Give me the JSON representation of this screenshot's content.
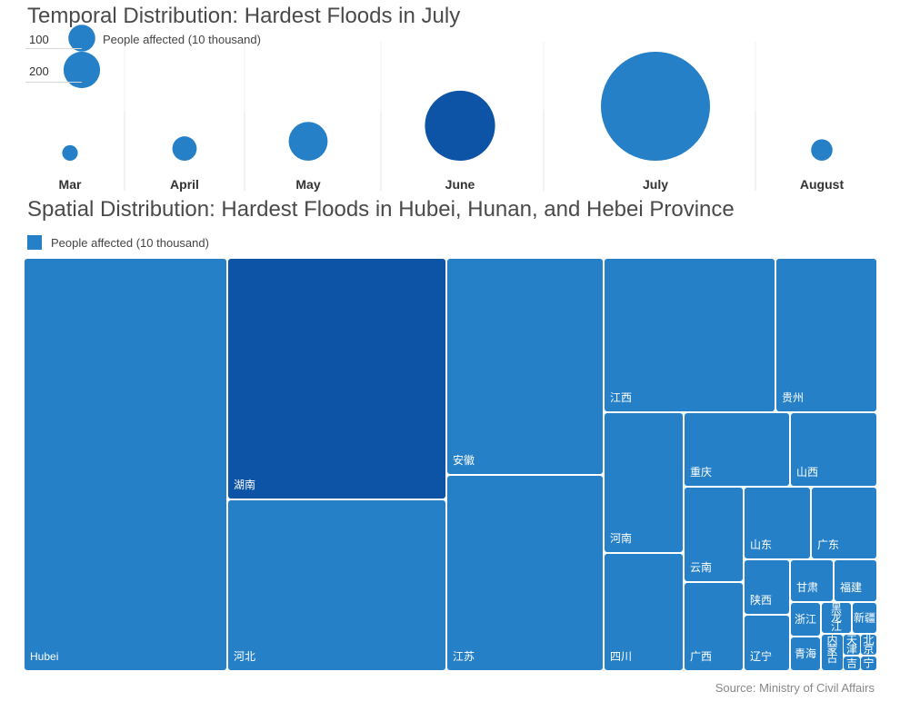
{
  "chart_data": [
    {
      "type": "bubble",
      "title": "Temporal Distribution: Hardest Floods in July",
      "size_legend": {
        "label": "People affected (10 thousand)",
        "reference_values": [
          100,
          200
        ]
      },
      "categories": [
        "Mar",
        "April",
        "May",
        "June",
        "July",
        "August"
      ],
      "values": [
        45,
        110,
        280,
        910,
        2200,
        85
      ],
      "highlight": "June",
      "colors": {
        "base": "#2580c8",
        "highlight": "#0d54a6"
      }
    },
    {
      "type": "treemap",
      "title": "Spatial Distribution: Hardest Floods in Hubei, Hunan, and Hebei Province",
      "legend_label": "People affected (10 thousand)",
      "highlight": "湖南",
      "colors": {
        "base": "#2580c8",
        "highlight": "#0d54a6"
      },
      "labels": [
        "Hubei",
        "湖南",
        "河北",
        "安徽",
        "江苏",
        "江西",
        "贵州",
        "河南",
        "四川",
        "重庆",
        "山西",
        "云南",
        "广西",
        "山东",
        "广东",
        "陕西",
        "辽宁",
        "甘肃",
        "福建",
        "浙江",
        "青海",
        "黑龙江",
        "新疆",
        "内蒙古",
        "天津",
        "北京",
        "吉",
        "宁"
      ],
      "values": [
        1455,
        845,
        693,
        778,
        715,
        555,
        396,
        388,
        315,
        288,
        278,
        253,
        221,
        209,
        204,
        125,
        104,
        103,
        102,
        76,
        75,
        55,
        40,
        40,
        26,
        24,
        18,
        16
      ]
    }
  ],
  "source": "Source: Ministry of Civil Affairs"
}
